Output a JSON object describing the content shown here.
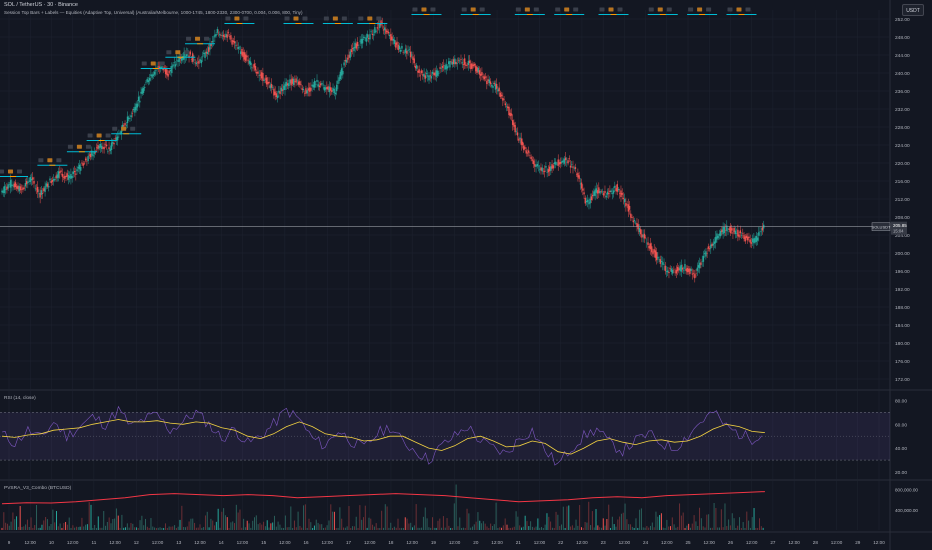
{
  "header": {
    "symbol_line": "SOL / TetherUS · 30 · Binance",
    "indicator_line": "Session Top Bars + Labels — Equities (Adaptive Top, Universal) (Australia/Melbourne, 1000-1745, 1800-2330, 2300-0700, 0.004, 0.006, 800, Tiny)"
  },
  "currency_button": "USDT",
  "panes": {
    "rsi_label": "RSI (14, close)",
    "volume_label": "PVSRA_V3_Combo (BTCUSD)"
  },
  "colors": {
    "background": "#131722",
    "up_candle": "#26a69a",
    "down_candle": "#ef5350",
    "session_line_cyan": "#00bcd4",
    "session_line_orange": "#ff9800",
    "rsi_line": "#7e57c2",
    "rsi_ma": "#f5d442",
    "volume_ma": "#f23645",
    "grid": "#1f2431"
  },
  "chart_data": [
    {
      "type": "candlestick",
      "title": "SOL / TetherUS · 30 · Binance",
      "x_ticks": [
        "9",
        "12:00",
        "10",
        "12:00",
        "11",
        "12:00",
        "12",
        "12:00",
        "13",
        "12:00",
        "14",
        "12:00",
        "15",
        "12:00",
        "16",
        "12:00",
        "17",
        "12:00",
        "18",
        "12:00",
        "19",
        "12:00",
        "20",
        "12:00",
        "21",
        "12:00",
        "22",
        "12:00",
        "23",
        "12:00",
        "24",
        "12:00",
        "25",
        "12:00",
        "26",
        "12:00",
        "27",
        "12:00",
        "28",
        "12:00",
        "29",
        "12:00"
      ],
      "y_ticks": [
        "252.00",
        "248.00",
        "244.00",
        "240.00",
        "236.00",
        "232.00",
        "228.00",
        "224.00",
        "220.00",
        "216.00",
        "212.00",
        "208.00",
        "204.00",
        "200.00",
        "196.00",
        "192.00",
        "188.00",
        "184.00",
        "180.00",
        "176.00",
        "172.00"
      ],
      "ylim": [
        170,
        254
      ],
      "last_price_label": "SOLUSDT",
      "last_price": "205.85",
      "countdown": "15:04",
      "close_path": [
        {
          "x": 0,
          "y": 213.5
        },
        {
          "x": 2,
          "y": 215.5
        },
        {
          "x": 4,
          "y": 214.0
        },
        {
          "x": 6,
          "y": 216.5
        },
        {
          "x": 8,
          "y": 213.0
        },
        {
          "x": 10,
          "y": 216.0
        },
        {
          "x": 12,
          "y": 218.0
        },
        {
          "x": 14,
          "y": 216.5
        },
        {
          "x": 16,
          "y": 219.0
        },
        {
          "x": 18,
          "y": 221.5
        },
        {
          "x": 20,
          "y": 224.0
        },
        {
          "x": 22,
          "y": 223.0
        },
        {
          "x": 24,
          "y": 226.5
        },
        {
          "x": 26,
          "y": 230.0
        },
        {
          "x": 28,
          "y": 234.0
        },
        {
          "x": 30,
          "y": 239.0
        },
        {
          "x": 32,
          "y": 241.5
        },
        {
          "x": 34,
          "y": 240.0
        },
        {
          "x": 36,
          "y": 243.0
        },
        {
          "x": 38,
          "y": 244.5
        },
        {
          "x": 40,
          "y": 242.0
        },
        {
          "x": 42,
          "y": 245.0
        },
        {
          "x": 44,
          "y": 249.0
        },
        {
          "x": 46,
          "y": 248.5
        },
        {
          "x": 48,
          "y": 245.5
        },
        {
          "x": 50,
          "y": 243.0
        },
        {
          "x": 52,
          "y": 240.5
        },
        {
          "x": 54,
          "y": 238.0
        },
        {
          "x": 56,
          "y": 235.0
        },
        {
          "x": 58,
          "y": 237.5
        },
        {
          "x": 60,
          "y": 238.5
        },
        {
          "x": 62,
          "y": 235.5
        },
        {
          "x": 64,
          "y": 238.0
        },
        {
          "x": 66,
          "y": 236.5
        },
        {
          "x": 68,
          "y": 236.0
        },
        {
          "x": 70,
          "y": 243.0
        },
        {
          "x": 72,
          "y": 246.0
        },
        {
          "x": 74,
          "y": 247.5
        },
        {
          "x": 76,
          "y": 249.5
        },
        {
          "x": 77,
          "y": 251.0
        },
        {
          "x": 79,
          "y": 248.0
        },
        {
          "x": 81,
          "y": 245.5
        },
        {
          "x": 83,
          "y": 244.5
        },
        {
          "x": 85,
          "y": 240.0
        },
        {
          "x": 87,
          "y": 239.0
        },
        {
          "x": 89,
          "y": 240.5
        },
        {
          "x": 91,
          "y": 242.0
        },
        {
          "x": 93,
          "y": 243.0
        },
        {
          "x": 95,
          "y": 242.0
        },
        {
          "x": 97,
          "y": 240.5
        },
        {
          "x": 99,
          "y": 238.0
        },
        {
          "x": 101,
          "y": 236.5
        },
        {
          "x": 103,
          "y": 232.0
        },
        {
          "x": 105,
          "y": 226.0
        },
        {
          "x": 107,
          "y": 222.0
        },
        {
          "x": 109,
          "y": 219.0
        },
        {
          "x": 111,
          "y": 218.5
        },
        {
          "x": 113,
          "y": 220.0
        },
        {
          "x": 115,
          "y": 221.0
        },
        {
          "x": 117,
          "y": 217.5
        },
        {
          "x": 119,
          "y": 211.0
        },
        {
          "x": 121,
          "y": 214.0
        },
        {
          "x": 123,
          "y": 213.0
        },
        {
          "x": 125,
          "y": 214.5
        },
        {
          "x": 127,
          "y": 211.0
        },
        {
          "x": 129,
          "y": 206.0
        },
        {
          "x": 131,
          "y": 203.0
        },
        {
          "x": 133,
          "y": 199.5
        },
        {
          "x": 135,
          "y": 196.5
        },
        {
          "x": 137,
          "y": 196.0
        },
        {
          "x": 139,
          "y": 197.0
        },
        {
          "x": 141,
          "y": 195.0
        },
        {
          "x": 143,
          "y": 200.0
        },
        {
          "x": 145,
          "y": 203.0
        },
        {
          "x": 147,
          "y": 205.5
        },
        {
          "x": 149,
          "y": 205.0
        },
        {
          "x": 151,
          "y": 203.5
        },
        {
          "x": 153,
          "y": 202.5
        },
        {
          "x": 155,
          "y": 205.85
        }
      ],
      "session_markers": [
        {
          "x": 0,
          "level": 217.0
        },
        {
          "x": 8,
          "level": 219.5
        },
        {
          "x": 14,
          "level": 222.5
        },
        {
          "x": 18,
          "level": 225.0
        },
        {
          "x": 23,
          "level": 226.5
        },
        {
          "x": 29,
          "level": 241.0
        },
        {
          "x": 34,
          "level": 243.5
        },
        {
          "x": 38,
          "level": 246.5
        },
        {
          "x": 46,
          "level": 251.0
        },
        {
          "x": 58,
          "level": 251.0
        },
        {
          "x": 66,
          "level": 251.0
        },
        {
          "x": 73,
          "level": 251.0
        },
        {
          "x": 84,
          "level": 253.0
        },
        {
          "x": 94,
          "level": 253.0
        },
        {
          "x": 105,
          "level": 253.0
        },
        {
          "x": 113,
          "level": 253.0
        },
        {
          "x": 122,
          "level": 253.0
        },
        {
          "x": 132,
          "level": 253.0
        },
        {
          "x": 140,
          "level": 253.0
        },
        {
          "x": 148,
          "level": 253.0
        }
      ]
    },
    {
      "type": "line",
      "title": "RSI (14, close)",
      "y_ticks": [
        "80.00",
        "60.00",
        "40.00",
        "20.00"
      ],
      "ylim": [
        15,
        87
      ],
      "bands": [
        70,
        30
      ],
      "series": [
        {
          "name": "RSI",
          "values": [
            52,
            44,
            55,
            48,
            62,
            50,
            58,
            66,
            60,
            72,
            58,
            64,
            68,
            55,
            62,
            70,
            60,
            48,
            56,
            44,
            50,
            60,
            72,
            64,
            48,
            42,
            55,
            46,
            40,
            52,
            58,
            45,
            38,
            30,
            42,
            50,
            58,
            46,
            40,
            35,
            48,
            55,
            38,
            26,
            40,
            50,
            56,
            44,
            38,
            46,
            52,
            44,
            40,
            50,
            62,
            70,
            58,
            52,
            48,
            55
          ]
        },
        {
          "name": "RSI-based MA",
          "values": [
            50,
            49,
            51,
            52,
            55,
            56,
            57,
            60,
            62,
            64,
            62,
            62,
            63,
            61,
            60,
            62,
            61,
            57,
            55,
            50,
            48,
            52,
            58,
            62,
            58,
            52,
            50,
            49,
            46,
            47,
            50,
            50,
            45,
            40,
            38,
            42,
            48,
            50,
            46,
            41,
            42,
            46,
            44,
            37,
            35,
            40,
            46,
            48,
            45,
            43,
            46,
            47,
            45,
            46,
            50,
            56,
            60,
            58,
            54,
            53
          ]
        }
      ]
    },
    {
      "type": "bar",
      "title": "PVSRA_V3_Combo (BTCUSD)",
      "y_ticks": [
        "800,000.00",
        "400,000.00"
      ],
      "ylim": [
        0,
        950000
      ],
      "series": [
        {
          "name": "MA",
          "values": [
            520000,
            540000,
            535000,
            560000,
            600000,
            640000,
            700000,
            720000,
            700000,
            680000,
            700000,
            680000,
            640000,
            660000,
            680000,
            700000,
            720000,
            700000,
            680000,
            640000,
            600000,
            560000,
            580000,
            600000,
            640000,
            660000,
            640000,
            680000,
            700000,
            720000,
            740000,
            760000
          ]
        }
      ]
    }
  ]
}
